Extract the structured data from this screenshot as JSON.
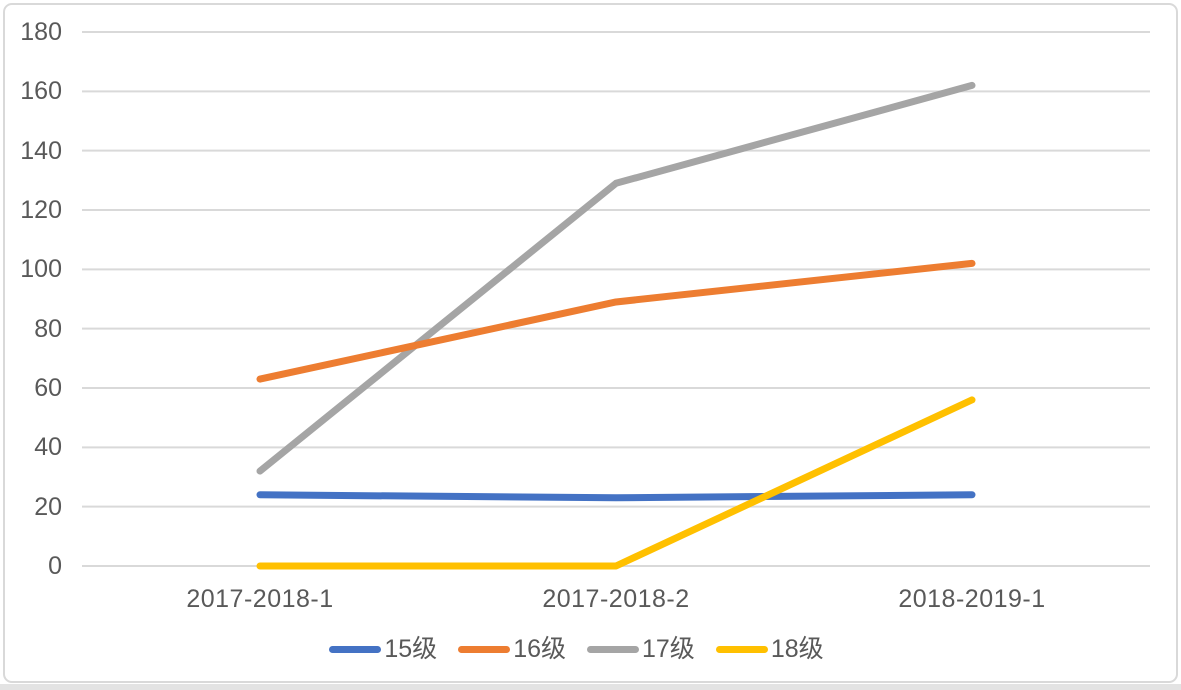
{
  "frame": {
    "background": "#FFFFFF",
    "border_color": "#D9D9D9",
    "bottom_strip_color": "#E3E3E3"
  },
  "chart_data": {
    "type": "line",
    "title": "",
    "xlabel": "",
    "ylabel": "",
    "categories": [
      "2017-2018-1",
      "2017-2018-2",
      "2018-2019-1"
    ],
    "series": [
      {
        "name": "15级",
        "color": "#4472C4",
        "values": [
          24,
          23,
          24
        ]
      },
      {
        "name": "16级",
        "color": "#ED7D31",
        "values": [
          63,
          89,
          102
        ]
      },
      {
        "name": "17级",
        "color": "#A5A5A5",
        "values": [
          32,
          129,
          162
        ]
      },
      {
        "name": "18级",
        "color": "#FFC000",
        "values": [
          0,
          0,
          56
        ]
      }
    ],
    "ylim": [
      0,
      180
    ],
    "ytick_step": 20,
    "yticks": [
      0,
      20,
      40,
      60,
      80,
      100,
      120,
      140,
      160,
      180
    ],
    "grid": true,
    "gridline_color": "#D9D9D9",
    "axis_text_color": "#595959",
    "legend_position": "bottom"
  }
}
